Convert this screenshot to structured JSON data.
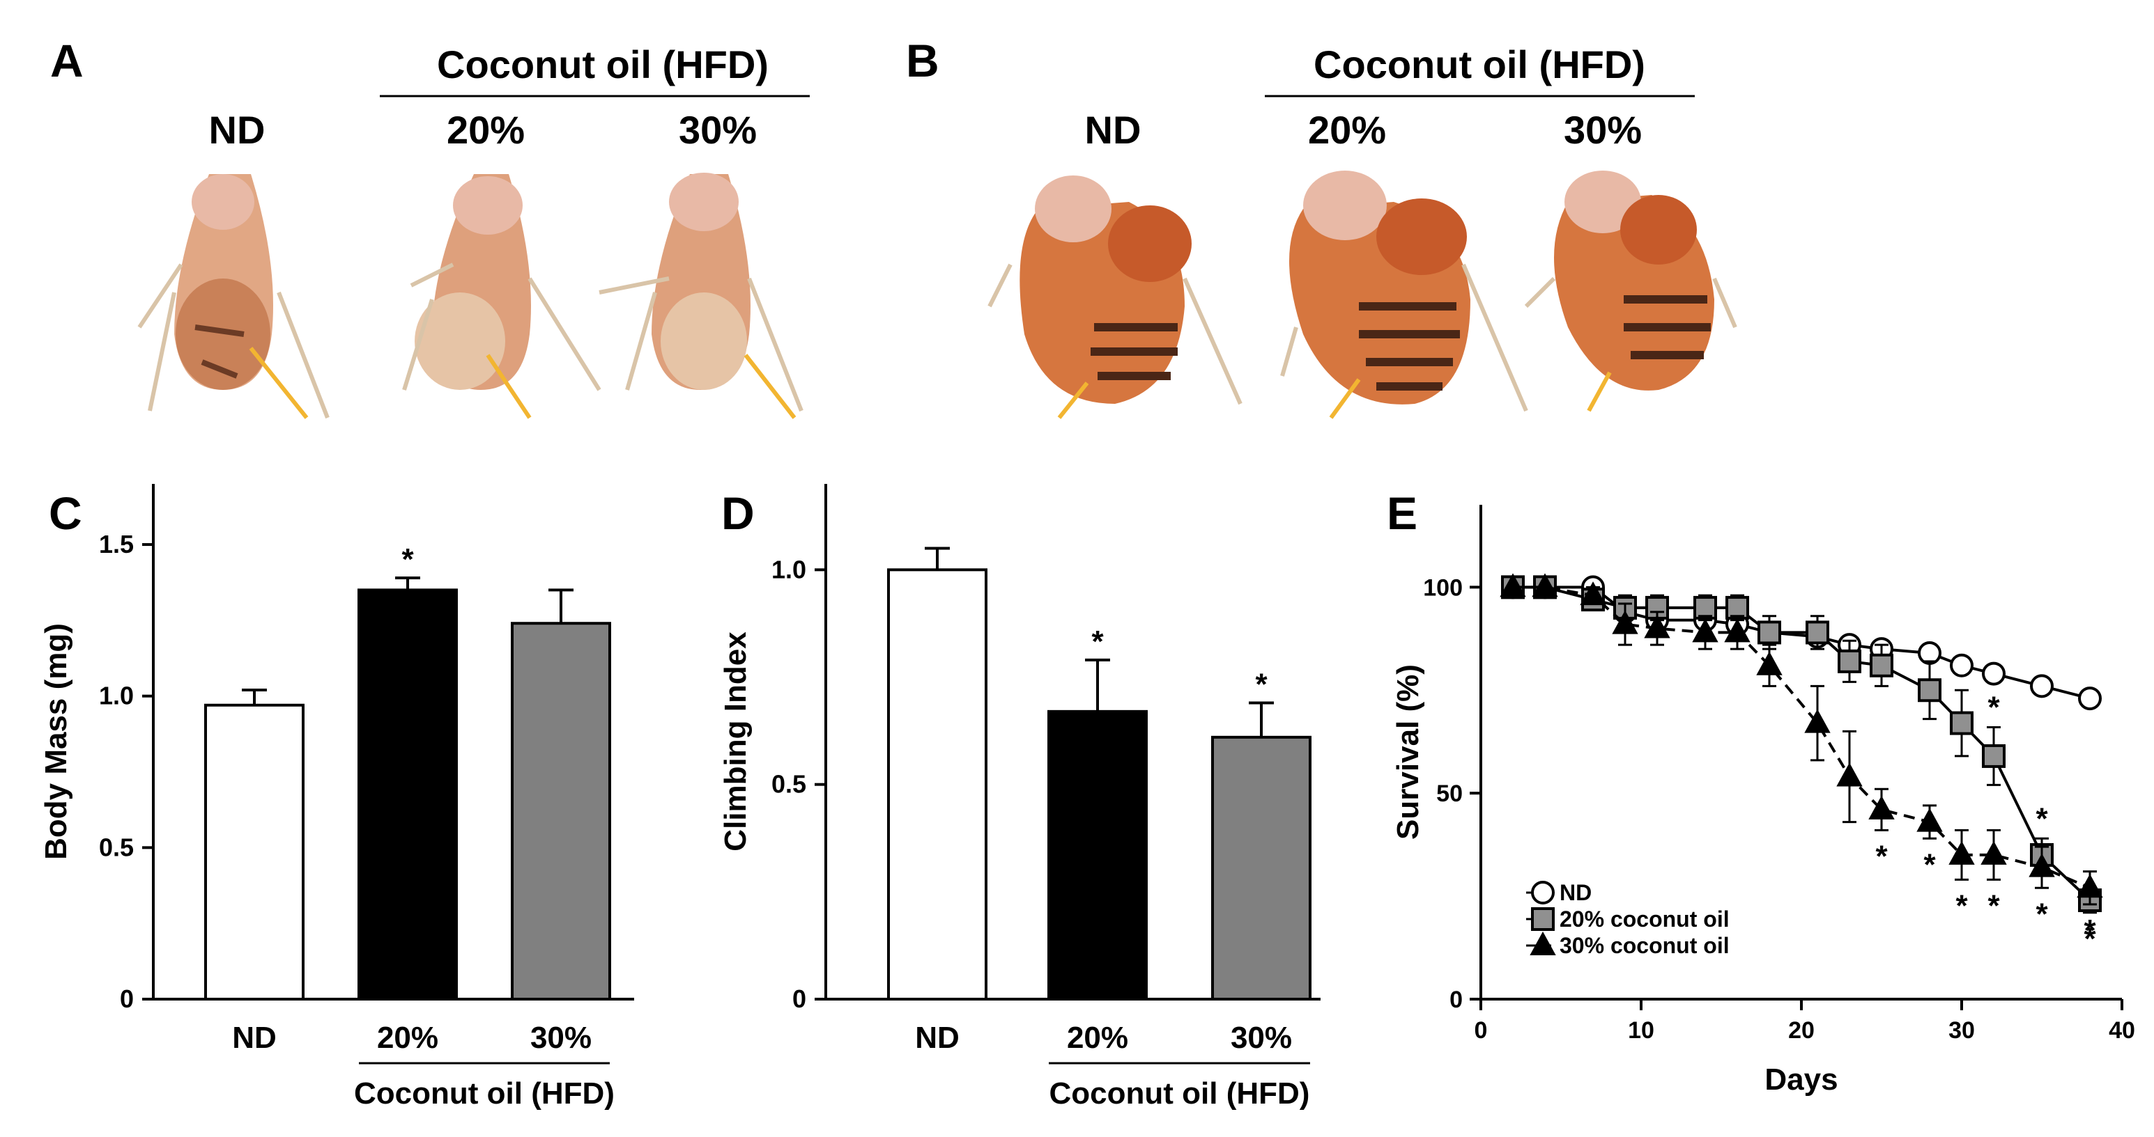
{
  "panels": {
    "A": {
      "letter": "A",
      "group_header": "Coconut oil (HFD)",
      "labels": [
        "ND",
        "20%",
        "30%"
      ]
    },
    "B": {
      "letter": "B",
      "group_header": "Coconut oil (HFD)",
      "labels": [
        "ND",
        "20%",
        "30%"
      ]
    }
  },
  "colors": {
    "nd_fill": "#ffffff",
    "hfd20_fill": "#000000",
    "hfd30_fill": "#808080",
    "marker_20": "#909090",
    "arrow": "#f2b531",
    "fly_body": "#d9885a"
  },
  "chart_data": [
    {
      "panel": "C",
      "type": "bar",
      "categories": [
        "ND",
        "20%",
        "30%"
      ],
      "values": [
        0.97,
        1.35,
        1.24
      ],
      "errors": [
        0.05,
        0.04,
        0.11
      ],
      "significance": [
        "",
        "*",
        ""
      ],
      "ylabel": "Body Mass (mg)",
      "ylim": [
        0,
        1.7
      ],
      "yticks": [
        0,
        0.5,
        1.0,
        1.5
      ],
      "ytick_labels": [
        "0",
        "0.5",
        "1.0",
        "1.5"
      ],
      "group_label": "Coconut oil (HFD)"
    },
    {
      "panel": "D",
      "type": "bar",
      "categories": [
        "ND",
        "20%",
        "30%"
      ],
      "values": [
        1.0,
        0.67,
        0.61
      ],
      "errors": [
        0.05,
        0.12,
        0.08
      ],
      "significance": [
        "",
        "*",
        "*"
      ],
      "ylabel": "Climbing Index",
      "ylim": [
        0,
        1.2
      ],
      "yticks": [
        0,
        0.5,
        1.0
      ],
      "ytick_labels": [
        "0",
        "0.5",
        "1.0"
      ],
      "group_label": "Coconut oil (HFD)"
    },
    {
      "panel": "E",
      "type": "line",
      "xlabel": "Days",
      "ylabel": "Survival (%)",
      "xlim": [
        0,
        40
      ],
      "ylim": [
        0,
        120
      ],
      "xticks": [
        0,
        10,
        20,
        30,
        40
      ],
      "yticks": [
        0,
        50,
        100
      ],
      "series": [
        {
          "name": "ND",
          "marker": "circle",
          "line": "solid",
          "x": [
            2,
            4,
            7,
            9,
            11,
            14,
            16,
            18,
            21,
            23,
            25,
            28,
            30,
            32,
            35,
            38
          ],
          "y": [
            100,
            100,
            100,
            94,
            92,
            92,
            91,
            89,
            88,
            86,
            85,
            84,
            81,
            79,
            76,
            73
          ],
          "err": [
            0,
            0,
            1,
            2,
            2,
            2,
            2,
            2,
            2,
            2,
            2,
            2,
            2,
            1,
            2,
            2
          ],
          "sig": []
        },
        {
          "name": "20% coconut oil",
          "marker": "square",
          "line": "solid",
          "x": [
            2,
            4,
            7,
            9,
            11,
            14,
            16,
            18,
            21,
            23,
            25,
            28,
            30,
            32,
            35,
            38
          ],
          "y": [
            100,
            100,
            97,
            95,
            95,
            95,
            95,
            89,
            89,
            82,
            81,
            75,
            67,
            59,
            35,
            24
          ],
          "err": [
            0,
            0,
            2,
            3,
            3,
            3,
            3,
            4,
            4,
            5,
            5,
            7,
            8,
            7,
            4,
            3
          ],
          "sig": [
            "32",
            "35",
            "38"
          ]
        },
        {
          "name": "30% coconut oil",
          "marker": "triangle",
          "line": "dashed",
          "x": [
            2,
            4,
            7,
            9,
            11,
            14,
            16,
            18,
            21,
            23,
            25,
            28,
            30,
            32,
            35,
            38
          ],
          "y": [
            100,
            100,
            98,
            91,
            90,
            89,
            89,
            81,
            67,
            54,
            46,
            43,
            35,
            35,
            32,
            27
          ],
          "err": [
            0,
            0,
            2,
            5,
            4,
            4,
            4,
            5,
            9,
            11,
            5,
            4,
            6,
            6,
            5,
            4
          ],
          "sig": [
            "25",
            "28",
            "30",
            "32",
            "35",
            "38"
          ]
        }
      ],
      "sig_symbol": "*"
    }
  ]
}
